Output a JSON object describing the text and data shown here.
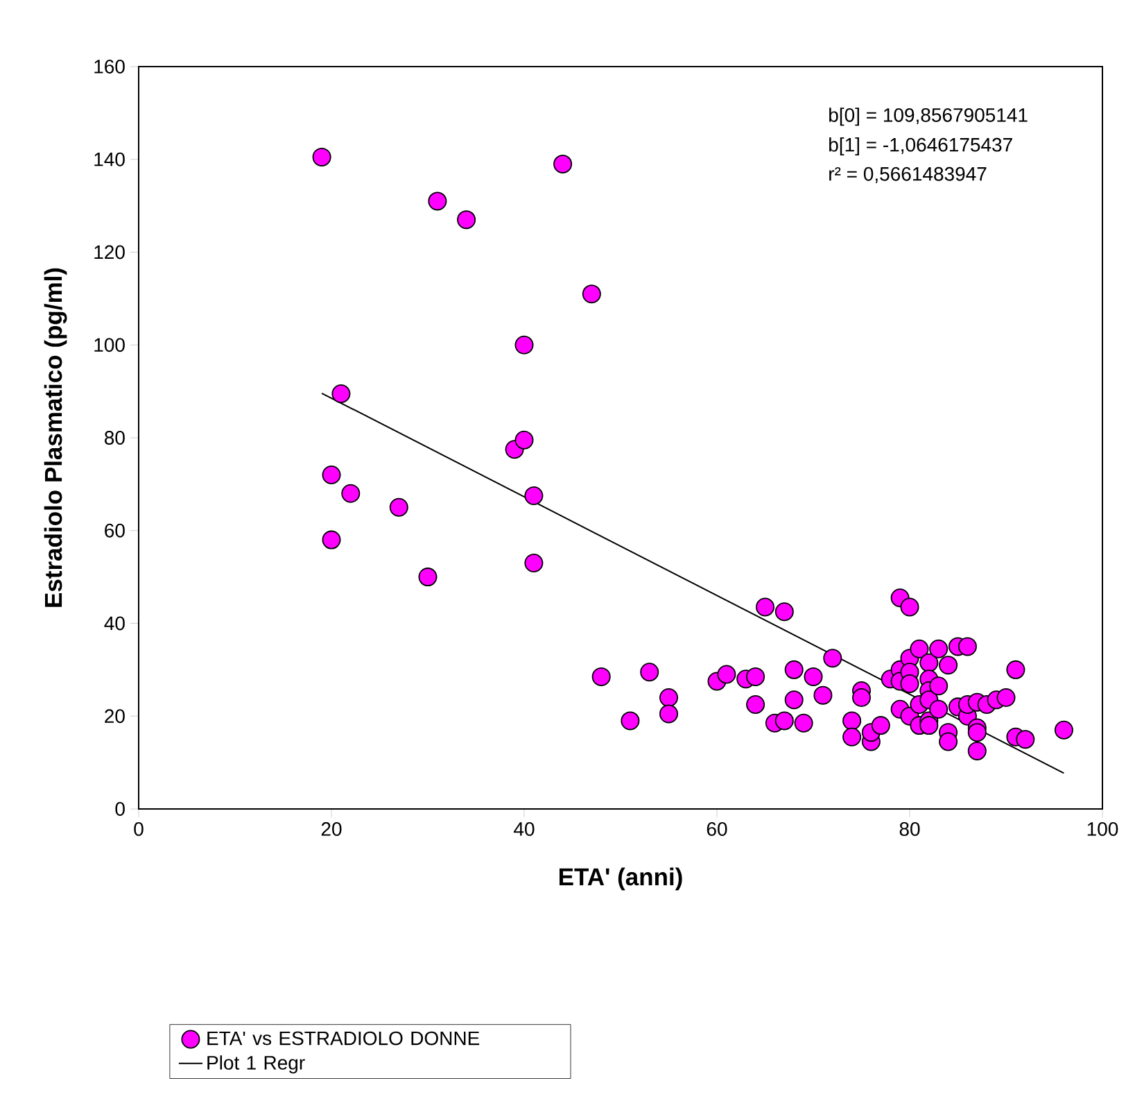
{
  "chart_data": {
    "type": "scatter",
    "xlabel": "ETA' (anni)",
    "ylabel": "Estradiolo Plasmatico (pg/ml)",
    "xlim": [
      0,
      100
    ],
    "ylim": [
      0,
      160
    ],
    "xticks": [
      0,
      20,
      40,
      60,
      80,
      100
    ],
    "yticks": [
      0,
      20,
      40,
      60,
      80,
      100,
      120,
      140,
      160
    ],
    "marker": "circle",
    "legend": "bottom left",
    "grid": false,
    "annotations": [
      "b[0] = 109,8567905141",
      "b[1] = -1,0646175437",
      "r² = 0,5661483947"
    ],
    "series": [
      {
        "name": "ETA' vs ESTRADIOLO DONNE",
        "color": "#ff00ff",
        "x": [
          19,
          20,
          20,
          21,
          22,
          27,
          30,
          31,
          34,
          39,
          40,
          40,
          41,
          41,
          44,
          47,
          48,
          51,
          53,
          55,
          55,
          60,
          61,
          63,
          64,
          64,
          65,
          66,
          67,
          67,
          68,
          68,
          69,
          70,
          71,
          72,
          74,
          74,
          75,
          75,
          76,
          76,
          77,
          78,
          79,
          79,
          79,
          79,
          80,
          80,
          80,
          80,
          80,
          81,
          81,
          81,
          82,
          82,
          82,
          82,
          82,
          82,
          83,
          83,
          83,
          84,
          84,
          84,
          85,
          85,
          86,
          86,
          86,
          87,
          87,
          87,
          87,
          88,
          89,
          90,
          91,
          91,
          92,
          96
        ],
        "values": [
          140.5,
          72,
          58,
          89.5,
          68,
          65,
          50,
          131,
          127,
          77.5,
          79.5,
          100,
          67.5,
          53,
          139,
          111,
          28.5,
          19,
          29.5,
          24,
          20.5,
          27.5,
          29,
          28,
          28.5,
          22.5,
          43.5,
          18.5,
          42.5,
          19,
          30,
          23.5,
          18.5,
          28.5,
          24.5,
          32.5,
          19,
          15.5,
          25.5,
          24,
          14.5,
          16.5,
          18,
          28,
          45.5,
          30,
          27.5,
          21.5,
          43.5,
          32.5,
          29.5,
          27,
          20,
          34.5,
          22.5,
          18,
          31.5,
          28,
          25.5,
          23.5,
          19,
          18,
          34.5,
          26.5,
          21.5,
          31,
          16.5,
          14.5,
          35,
          22,
          35,
          20,
          22.5,
          23,
          17.5,
          16.5,
          12.5,
          22.5,
          23.5,
          24,
          30,
          15.5,
          15,
          17
        ]
      },
      {
        "name": "Plot 1 Regr",
        "type": "line",
        "color": "#000000",
        "marker": "none",
        "x": [
          19,
          96
        ],
        "values": [
          89.6,
          7.7
        ]
      }
    ]
  }
}
